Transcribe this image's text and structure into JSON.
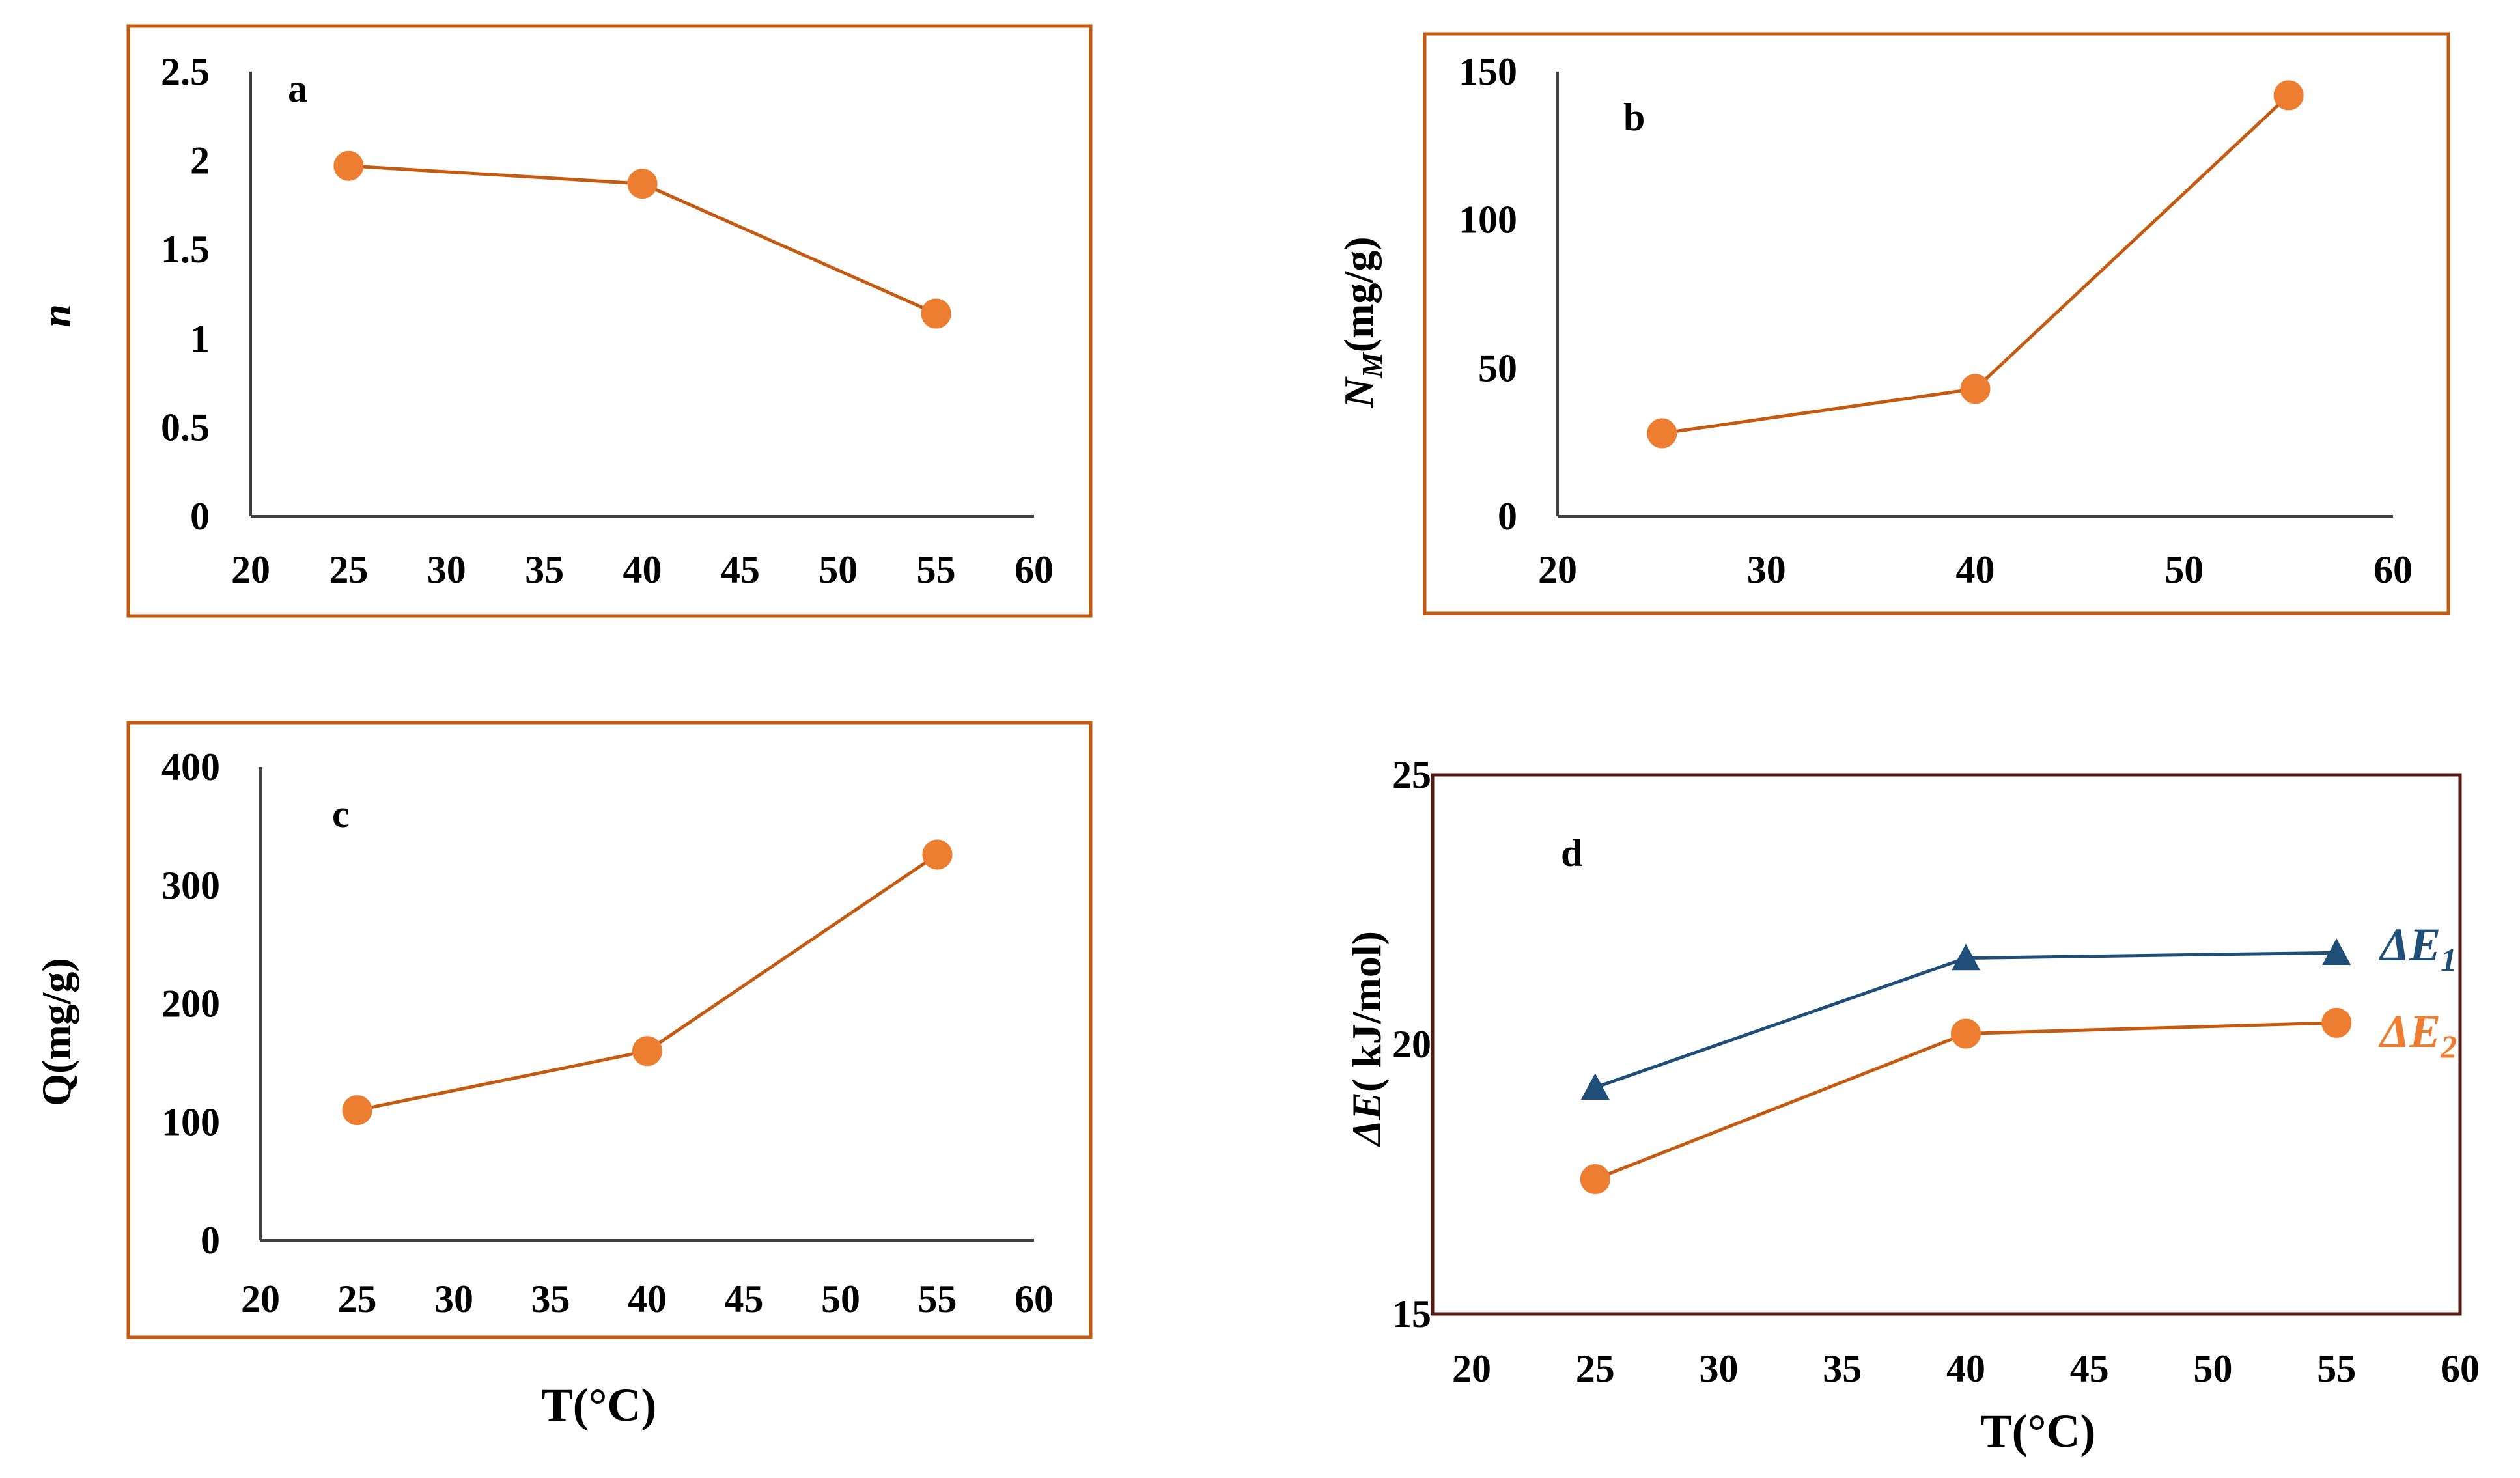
{
  "colors": {
    "orange": "#ED7D31",
    "line_orange": "#C55A11",
    "teal": "#1F4E79",
    "frame_orange": "#C55A11",
    "frame_dark": "#5A1A14"
  },
  "shared": {
    "xlabel_left": "T(°C)",
    "xlabel_right": "T(°C)"
  },
  "chart_data": [
    {
      "panel": "a",
      "type": "line",
      "x": [
        25,
        40,
        55
      ],
      "series": [
        {
          "name": "n",
          "values": [
            1.97,
            1.87,
            1.14
          ],
          "marker": "circle",
          "color": "#ED7D31"
        }
      ],
      "xlim": [
        20,
        60
      ],
      "xticks": [
        20,
        25,
        30,
        35,
        40,
        45,
        50,
        55,
        60
      ],
      "ylim": [
        0,
        2.5
      ],
      "yticks": [
        0,
        0.5,
        1,
        1.5,
        2,
        2.5
      ],
      "ytick_labels": [
        "0",
        "0.5",
        "1",
        "1.5",
        "2",
        "2.5"
      ],
      "ylabel": "n",
      "xlabel": "",
      "title": ""
    },
    {
      "panel": "b",
      "type": "line",
      "x": [
        25,
        40,
        55
      ],
      "series": [
        {
          "name": "NM",
          "values": [
            28,
            43,
            142
          ],
          "marker": "circle",
          "color": "#ED7D31"
        }
      ],
      "xlim": [
        20,
        60
      ],
      "xticks": [
        20,
        30,
        40,
        50,
        60
      ],
      "ylim": [
        0,
        150
      ],
      "yticks": [
        0,
        50,
        100,
        150
      ],
      "ytick_labels": [
        "0",
        "50",
        "100",
        "150"
      ],
      "ylabel_main": "N",
      "ylabel_sub": "M",
      "ylabel_rest": "(mg/g)",
      "xlabel": "",
      "title": ""
    },
    {
      "panel": "c",
      "type": "line",
      "x": [
        25,
        40,
        55
      ],
      "series": [
        {
          "name": "Q",
          "values": [
            110,
            160,
            326
          ],
          "marker": "circle",
          "color": "#ED7D31"
        }
      ],
      "xlim": [
        20,
        60
      ],
      "xticks": [
        20,
        25,
        30,
        35,
        40,
        45,
        50,
        55,
        60
      ],
      "ylim": [
        0,
        400
      ],
      "yticks": [
        0,
        100,
        200,
        300,
        400
      ],
      "ytick_labels": [
        "0",
        "100",
        "200",
        "300",
        "400"
      ],
      "ylabel": "Q(mg/g)",
      "xlabel": "T(°C)",
      "title": ""
    },
    {
      "panel": "d",
      "type": "line",
      "x": [
        25,
        40,
        55
      ],
      "series": [
        {
          "name": "ΔE1",
          "label_main": "ΔE",
          "label_sub": "1",
          "values": [
            19.2,
            21.6,
            21.7
          ],
          "marker": "triangle",
          "color": "#1F4E79"
        },
        {
          "name": "ΔE2",
          "label_main": "ΔE",
          "label_sub": "2",
          "values": [
            17.5,
            20.2,
            20.4
          ],
          "marker": "circle",
          "color": "#ED7D31"
        }
      ],
      "xlim": [
        20,
        60
      ],
      "xticks": [
        20,
        25,
        30,
        35,
        40,
        45,
        50,
        55,
        60
      ],
      "ylim": [
        15,
        25
      ],
      "yticks": [
        15,
        20,
        25
      ],
      "ytick_labels": [
        "15",
        "20",
        "25"
      ],
      "ylabel_main": "ΔE",
      "ylabel_rest": "( kJ/mol)",
      "xlabel": "T(°C)",
      "title": ""
    }
  ]
}
